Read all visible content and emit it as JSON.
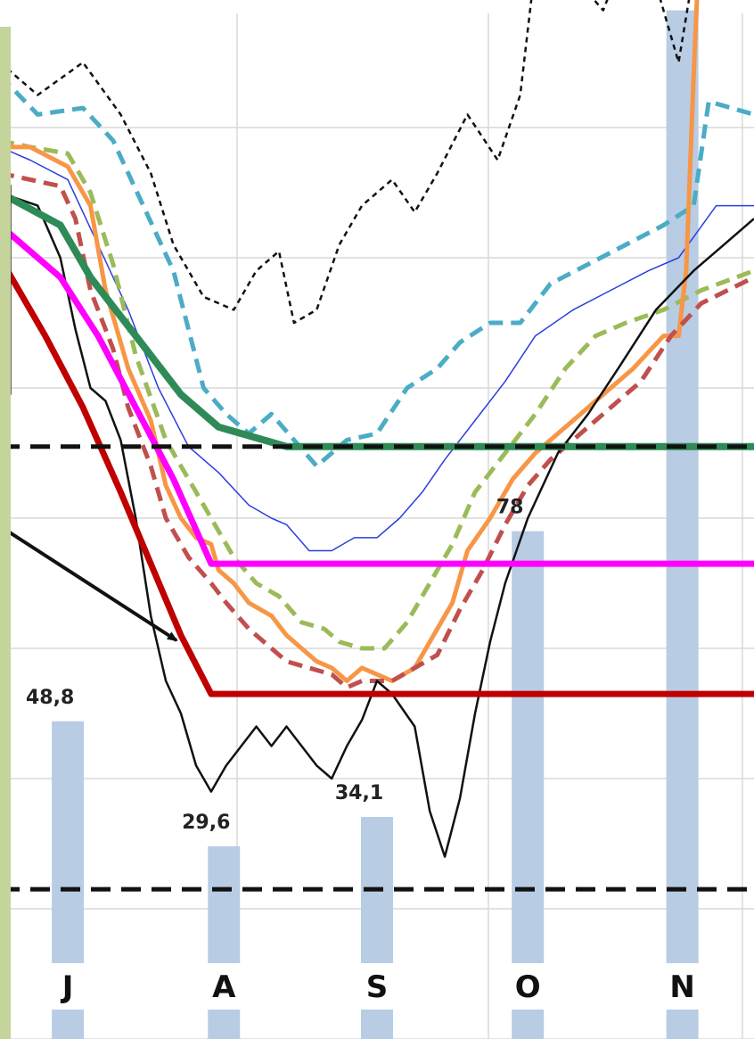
{
  "chart_data": {
    "type": "line",
    "x_range": [
      0,
      1
    ],
    "grid": true,
    "colors": {
      "bars": "#b8cce4",
      "black_dotted": "#111111",
      "cyan_dashed": "#4bacc6",
      "blue_thin": "#2b3de0",
      "green_dashed": "#9bbb59",
      "orange": "#f79646",
      "brown_dashed": "#c0504d",
      "black_solid": "#111111",
      "green_thick": "#2e8b57",
      "magenta": "#ff00ff",
      "red": "#c00000",
      "dashed_reference": "#111111",
      "left_band": "#c4d49b"
    },
    "categories": [
      "J",
      "A",
      "S",
      "O",
      "N"
    ],
    "bars": {
      "positions": [
        0.09,
        0.297,
        0.5,
        0.7,
        0.905
      ],
      "values": [
        48.8,
        29.6,
        34.1,
        78,
        158
      ],
      "labels": [
        "48,8",
        "29,6",
        "34,1",
        "78",
        ""
      ]
    },
    "series": [
      {
        "style": "black-dotted",
        "points": [
          [
            0,
            150
          ],
          [
            0.05,
            145
          ],
          [
            0.11,
            150
          ],
          [
            0.16,
            142
          ],
          [
            0.2,
            133
          ],
          [
            0.23,
            122
          ],
          [
            0.27,
            114
          ],
          [
            0.31,
            112
          ],
          [
            0.34,
            118
          ],
          [
            0.37,
            121
          ],
          [
            0.39,
            110
          ],
          [
            0.42,
            112
          ],
          [
            0.45,
            122
          ],
          [
            0.48,
            128
          ],
          [
            0.52,
            132
          ],
          [
            0.55,
            127
          ],
          [
            0.58,
            133
          ],
          [
            0.62,
            142
          ],
          [
            0.66,
            135
          ],
          [
            0.69,
            145
          ],
          [
            0.71,
            165
          ],
          [
            0.74,
            178
          ],
          [
            0.77,
            162
          ],
          [
            0.8,
            158
          ],
          [
            0.84,
            170
          ],
          [
            0.87,
            162
          ],
          [
            0.9,
            150
          ],
          [
            0.94,
            178
          ],
          [
            1,
            188
          ]
        ]
      },
      {
        "style": "cyan-dashed",
        "points": [
          [
            0,
            148
          ],
          [
            0.05,
            142
          ],
          [
            0.11,
            143
          ],
          [
            0.15,
            138
          ],
          [
            0.19,
            128
          ],
          [
            0.23,
            118
          ],
          [
            0.27,
            100
          ],
          [
            0.3,
            96
          ],
          [
            0.33,
            93
          ],
          [
            0.36,
            96
          ],
          [
            0.39,
            92
          ],
          [
            0.42,
            88
          ],
          [
            0.46,
            92
          ],
          [
            0.5,
            93
          ],
          [
            0.54,
            100
          ],
          [
            0.58,
            103
          ],
          [
            0.61,
            107
          ],
          [
            0.65,
            110
          ],
          [
            0.69,
            110
          ],
          [
            0.73,
            116
          ],
          [
            0.78,
            119
          ],
          [
            0.83,
            122
          ],
          [
            0.88,
            125
          ],
          [
            0.92,
            128
          ],
          [
            0.94,
            144
          ],
          [
            1,
            142
          ]
        ]
      },
      {
        "style": "blue-thin",
        "points": [
          [
            0,
            137
          ],
          [
            0.04,
            135
          ],
          [
            0.09,
            132
          ],
          [
            0.13,
            122
          ],
          [
            0.17,
            112
          ],
          [
            0.21,
            100
          ],
          [
            0.25,
            91
          ],
          [
            0.29,
            87
          ],
          [
            0.33,
            82
          ],
          [
            0.36,
            80
          ],
          [
            0.38,
            79
          ],
          [
            0.41,
            75
          ],
          [
            0.44,
            75
          ],
          [
            0.47,
            77
          ],
          [
            0.5,
            77
          ],
          [
            0.53,
            80
          ],
          [
            0.56,
            84
          ],
          [
            0.59,
            89
          ],
          [
            0.63,
            95
          ],
          [
            0.67,
            101
          ],
          [
            0.71,
            108
          ],
          [
            0.76,
            112
          ],
          [
            0.81,
            115
          ],
          [
            0.86,
            118
          ],
          [
            0.9,
            120
          ],
          [
            0.95,
            128
          ],
          [
            1,
            128
          ]
        ]
      },
      {
        "style": "green-dashed",
        "points": [
          [
            0,
            138
          ],
          [
            0.04,
            137
          ],
          [
            0.09,
            136
          ],
          [
            0.12,
            130
          ],
          [
            0.15,
            119
          ],
          [
            0.18,
            105
          ],
          [
            0.22,
            92
          ],
          [
            0.26,
            84
          ],
          [
            0.29,
            78
          ],
          [
            0.31,
            74
          ],
          [
            0.34,
            70
          ],
          [
            0.37,
            68
          ],
          [
            0.4,
            64
          ],
          [
            0.43,
            63
          ],
          [
            0.45,
            61
          ],
          [
            0.48,
            60
          ],
          [
            0.51,
            60
          ],
          [
            0.54,
            64
          ],
          [
            0.57,
            70
          ],
          [
            0.6,
            76
          ],
          [
            0.63,
            84
          ],
          [
            0.67,
            90
          ],
          [
            0.71,
            96
          ],
          [
            0.75,
            103
          ],
          [
            0.79,
            108
          ],
          [
            0.83,
            110
          ],
          [
            0.88,
            112
          ],
          [
            0.93,
            115
          ],
          [
            1,
            118
          ]
        ]
      },
      {
        "style": "orange-solid",
        "points": [
          [
            0,
            137
          ],
          [
            0.04,
            137
          ],
          [
            0.09,
            134
          ],
          [
            0.12,
            128
          ],
          [
            0.14,
            115
          ],
          [
            0.17,
            103
          ],
          [
            0.2,
            95
          ],
          [
            0.22,
            85
          ],
          [
            0.24,
            80
          ],
          [
            0.26,
            77
          ],
          [
            0.28,
            76
          ],
          [
            0.29,
            72
          ],
          [
            0.31,
            70
          ],
          [
            0.33,
            67
          ],
          [
            0.36,
            65
          ],
          [
            0.38,
            62
          ],
          [
            0.4,
            60
          ],
          [
            0.42,
            58
          ],
          [
            0.44,
            57
          ],
          [
            0.46,
            55
          ],
          [
            0.48,
            57
          ],
          [
            0.5,
            56
          ],
          [
            0.52,
            55
          ],
          [
            0.55,
            57
          ],
          [
            0.57,
            61
          ],
          [
            0.6,
            67
          ],
          [
            0.62,
            75
          ],
          [
            0.65,
            80
          ],
          [
            0.68,
            86
          ],
          [
            0.71,
            90
          ],
          [
            0.75,
            94
          ],
          [
            0.79,
            98
          ],
          [
            0.84,
            103
          ],
          [
            0.88,
            108
          ],
          [
            0.9,
            108
          ],
          [
            0.91,
            118
          ],
          [
            0.92,
            148
          ],
          [
            0.93,
            175
          ],
          [
            0.94,
            188
          ],
          [
            0.97,
            185
          ],
          [
            1,
            168
          ]
        ]
      },
      {
        "style": "brown-dashed",
        "points": [
          [
            0,
            133
          ],
          [
            0.04,
            132
          ],
          [
            0.08,
            131
          ],
          [
            0.1,
            126
          ],
          [
            0.12,
            115
          ],
          [
            0.15,
            106
          ],
          [
            0.17,
            97
          ],
          [
            0.2,
            88
          ],
          [
            0.22,
            80
          ],
          [
            0.25,
            74
          ],
          [
            0.28,
            70
          ],
          [
            0.3,
            67
          ],
          [
            0.33,
            63
          ],
          [
            0.36,
            60
          ],
          [
            0.38,
            58
          ],
          [
            0.41,
            57
          ],
          [
            0.44,
            56
          ],
          [
            0.46,
            54
          ],
          [
            0.48,
            55
          ],
          [
            0.5,
            55
          ],
          [
            0.52,
            55
          ],
          [
            0.55,
            57
          ],
          [
            0.58,
            59
          ],
          [
            0.61,
            66
          ],
          [
            0.64,
            72
          ],
          [
            0.67,
            79
          ],
          [
            0.7,
            85
          ],
          [
            0.73,
            89
          ],
          [
            0.77,
            93
          ],
          [
            0.81,
            97
          ],
          [
            0.85,
            101
          ],
          [
            0.89,
            108
          ],
          [
            0.93,
            113
          ],
          [
            1,
            117
          ]
        ]
      },
      {
        "style": "black-solid",
        "points": [
          [
            0,
            130
          ],
          [
            0.05,
            128
          ],
          [
            0.08,
            120
          ],
          [
            0.1,
            109
          ],
          [
            0.12,
            100
          ],
          [
            0.14,
            98
          ],
          [
            0.16,
            92
          ],
          [
            0.18,
            80
          ],
          [
            0.2,
            65
          ],
          [
            0.22,
            55
          ],
          [
            0.24,
            50
          ],
          [
            0.26,
            42
          ],
          [
            0.28,
            38
          ],
          [
            0.3,
            42
          ],
          [
            0.32,
            45
          ],
          [
            0.34,
            48
          ],
          [
            0.36,
            45
          ],
          [
            0.38,
            48
          ],
          [
            0.4,
            45
          ],
          [
            0.42,
            42
          ],
          [
            0.44,
            40
          ],
          [
            0.46,
            45
          ],
          [
            0.48,
            49
          ],
          [
            0.5,
            55
          ],
          [
            0.52,
            53
          ],
          [
            0.55,
            48
          ],
          [
            0.57,
            35
          ],
          [
            0.59,
            28
          ],
          [
            0.61,
            37
          ],
          [
            0.63,
            50
          ],
          [
            0.65,
            61
          ],
          [
            0.67,
            70
          ],
          [
            0.7,
            80
          ],
          [
            0.74,
            90
          ],
          [
            0.78,
            96
          ],
          [
            0.82,
            103
          ],
          [
            0.87,
            112
          ],
          [
            0.92,
            118
          ],
          [
            0.96,
            122
          ],
          [
            1,
            126
          ]
        ]
      },
      {
        "style": "green-thick",
        "points": [
          [
            0,
            130
          ],
          [
            0.08,
            125
          ],
          [
            0.12,
            117
          ],
          [
            0.18,
            108
          ],
          [
            0.24,
            99
          ],
          [
            0.29,
            94
          ],
          [
            0.38,
            91
          ],
          [
            1,
            91
          ]
        ]
      },
      {
        "style": "magenta-solid",
        "points": [
          [
            0,
            125
          ],
          [
            0.08,
            117
          ],
          [
            0.13,
            108
          ],
          [
            0.18,
            97
          ],
          [
            0.23,
            86
          ],
          [
            0.28,
            73
          ],
          [
            1,
            73
          ]
        ]
      },
      {
        "style": "red-solid",
        "points": [
          [
            0,
            120
          ],
          [
            0.06,
            108
          ],
          [
            0.11,
            97
          ],
          [
            0.16,
            84
          ],
          [
            0.2,
            73
          ],
          [
            0.24,
            62
          ],
          [
            0.28,
            53
          ],
          [
            1,
            53
          ]
        ]
      },
      {
        "style": "black-dashed-reference",
        "points": [
          [
            0,
            91
          ],
          [
            1,
            91
          ]
        ]
      },
      {
        "style": "black-dashed-reference",
        "points": [
          [
            0,
            23
          ],
          [
            1,
            23
          ]
        ]
      }
    ]
  }
}
